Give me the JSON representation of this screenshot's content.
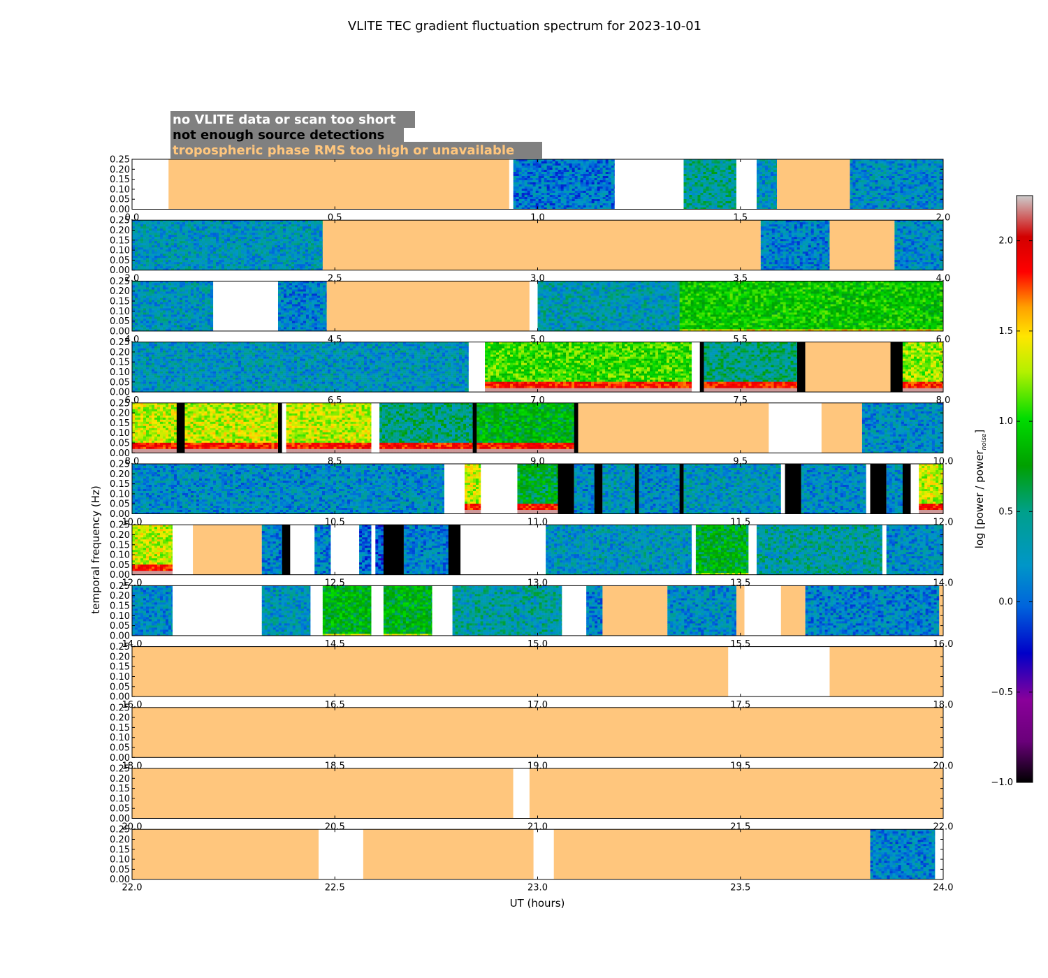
{
  "chart_data": {
    "type": "heatmap",
    "title": "VLITE TEC gradient fluctuation spectrum for 2023-10-01",
    "xlabel": "UT (hours)",
    "ylabel": "temporal frequency (Hz)",
    "colorbar_label": "log [power / power",
    "colorbar_label_sub": "noise",
    "colorbar_label_end": "]",
    "colorbar_range": [
      -1.0,
      2.25
    ],
    "colorbar_ticks": [
      "2.0",
      "1.5",
      "1.0",
      "0.5",
      "0.0",
      "−0.5",
      "−1.0"
    ],
    "colorbar_tick_values": [
      2.0,
      1.5,
      1.0,
      0.5,
      0.0,
      -0.5,
      -1.0
    ],
    "y_ticks": [
      "0.25",
      "0.20",
      "0.15",
      "0.10",
      "0.05",
      "0.00"
    ],
    "y_tick_values": [
      0.25,
      0.2,
      0.15,
      0.1,
      0.05,
      0.0
    ],
    "ylim": [
      0,
      0.25
    ],
    "legend": [
      {
        "label": "no VLITE data or scan too short",
        "text_color": "#ffffff",
        "meaning": "white"
      },
      {
        "label": "not enough source detections",
        "text_color": "#000000",
        "meaning": "black"
      },
      {
        "label": "tropospheric phase RMS too high or unavailable",
        "text_color": "#ffc67d",
        "meaning": "orange"
      }
    ],
    "legend_placement": "top-left",
    "colors": {
      "no_data": "#ffffff",
      "few_detections": "#000000",
      "tropo_flag": "#ffc67d",
      "legend_box": "#808080"
    },
    "panels": [
      {
        "xlim": [
          0,
          2
        ],
        "x_ticks": [
          "0.0",
          "0.5",
          "1.0",
          "1.5",
          "2.0"
        ],
        "segments": [
          {
            "start": 0.0,
            "end": 0.09,
            "kind": "nodata"
          },
          {
            "start": 0.09,
            "end": 0.93,
            "kind": "tropo"
          },
          {
            "start": 0.93,
            "end": 0.94,
            "kind": "nodata"
          },
          {
            "start": 0.94,
            "end": 1.19,
            "kind": "spectrum",
            "level": -0.05
          },
          {
            "start": 1.19,
            "end": 1.36,
            "kind": "nodata"
          },
          {
            "start": 1.36,
            "end": 1.49,
            "kind": "spectrum",
            "level": 0.25
          },
          {
            "start": 1.49,
            "end": 1.54,
            "kind": "nodata"
          },
          {
            "start": 1.54,
            "end": 1.59,
            "kind": "spectrum",
            "level": 0.1
          },
          {
            "start": 1.59,
            "end": 1.77,
            "kind": "tropo"
          },
          {
            "start": 1.77,
            "end": 2.0,
            "kind": "spectrum",
            "level": 0.05
          }
        ]
      },
      {
        "xlim": [
          2,
          4
        ],
        "x_ticks": [
          "2.0",
          "2.5",
          "3.0",
          "3.5",
          "4.0"
        ],
        "segments": [
          {
            "start": 2.0,
            "end": 2.47,
            "kind": "spectrum",
            "level": 0.1
          },
          {
            "start": 2.47,
            "end": 3.55,
            "kind": "tropo"
          },
          {
            "start": 3.55,
            "end": 3.72,
            "kind": "spectrum",
            "level": 0.0
          },
          {
            "start": 3.72,
            "end": 3.88,
            "kind": "tropo"
          },
          {
            "start": 3.88,
            "end": 4.0,
            "kind": "spectrum",
            "level": 0.05
          }
        ]
      },
      {
        "xlim": [
          4,
          6
        ],
        "x_ticks": [
          "4.0",
          "4.5",
          "5.0",
          "5.5",
          "6.0"
        ],
        "segments": [
          {
            "start": 4.0,
            "end": 4.2,
            "kind": "spectrum",
            "level": 0.1
          },
          {
            "start": 4.2,
            "end": 4.36,
            "kind": "nodata"
          },
          {
            "start": 4.36,
            "end": 4.48,
            "kind": "spectrum",
            "level": 0.0
          },
          {
            "start": 4.48,
            "end": 4.98,
            "kind": "tropo"
          },
          {
            "start": 4.98,
            "end": 5.0,
            "kind": "nodata"
          },
          {
            "start": 5.0,
            "end": 5.35,
            "kind": "spectrum",
            "level": 0.15
          },
          {
            "start": 5.35,
            "end": 6.0,
            "kind": "spectrum",
            "level": 0.75
          }
        ]
      },
      {
        "xlim": [
          6,
          8
        ],
        "x_ticks": [
          "6.0",
          "6.5",
          "7.0",
          "7.5",
          "8.0"
        ],
        "segments": [
          {
            "start": 6.0,
            "end": 6.83,
            "kind": "spectrum",
            "level": 0.1
          },
          {
            "start": 6.83,
            "end": 6.87,
            "kind": "nodata"
          },
          {
            "start": 6.87,
            "end": 7.38,
            "kind": "spectrum",
            "level": 0.9,
            "low_band": true
          },
          {
            "start": 7.38,
            "end": 7.4,
            "kind": "nodata"
          },
          {
            "start": 7.4,
            "end": 7.41,
            "kind": "black"
          },
          {
            "start": 7.41,
            "end": 7.64,
            "kind": "spectrum",
            "level": 0.3,
            "low_band": true
          },
          {
            "start": 7.64,
            "end": 7.66,
            "kind": "black"
          },
          {
            "start": 7.66,
            "end": 7.87,
            "kind": "tropo"
          },
          {
            "start": 7.87,
            "end": 7.9,
            "kind": "black"
          },
          {
            "start": 7.9,
            "end": 8.0,
            "kind": "spectrum",
            "level": 1.1,
            "low_band": true
          }
        ]
      },
      {
        "xlim": [
          8,
          10
        ],
        "x_ticks": [
          "8.0",
          "8.5",
          "9.0",
          "9.5",
          "10.0"
        ],
        "segments": [
          {
            "start": 8.0,
            "end": 8.11,
            "kind": "spectrum",
            "level": 1.2,
            "low_band": true
          },
          {
            "start": 8.11,
            "end": 8.13,
            "kind": "black"
          },
          {
            "start": 8.13,
            "end": 8.36,
            "kind": "spectrum",
            "level": 1.2,
            "low_band": true
          },
          {
            "start": 8.36,
            "end": 8.37,
            "kind": "black"
          },
          {
            "start": 8.37,
            "end": 8.38,
            "kind": "nodata"
          },
          {
            "start": 8.38,
            "end": 8.59,
            "kind": "spectrum",
            "level": 1.2,
            "low_band": true
          },
          {
            "start": 8.59,
            "end": 8.61,
            "kind": "nodata"
          },
          {
            "start": 8.61,
            "end": 8.84,
            "kind": "spectrum",
            "level": 0.3,
            "low_band": true
          },
          {
            "start": 8.84,
            "end": 8.85,
            "kind": "black"
          },
          {
            "start": 8.85,
            "end": 9.09,
            "kind": "spectrum",
            "level": 0.6,
            "low_band": true
          },
          {
            "start": 9.09,
            "end": 9.1,
            "kind": "black"
          },
          {
            "start": 9.1,
            "end": 9.57,
            "kind": "tropo"
          },
          {
            "start": 9.57,
            "end": 9.7,
            "kind": "nodata"
          },
          {
            "start": 9.7,
            "end": 9.8,
            "kind": "tropo"
          },
          {
            "start": 9.8,
            "end": 10.0,
            "kind": "spectrum",
            "level": 0.05
          }
        ]
      },
      {
        "xlim": [
          10,
          12
        ],
        "x_ticks": [
          "10.0",
          "10.5",
          "11.0",
          "11.5",
          "12.0"
        ],
        "segments": [
          {
            "start": 10.0,
            "end": 10.77,
            "kind": "spectrum",
            "level": 0.05
          },
          {
            "start": 10.77,
            "end": 10.82,
            "kind": "nodata"
          },
          {
            "start": 10.82,
            "end": 10.86,
            "kind": "spectrum",
            "level": 1.2,
            "low_band": true
          },
          {
            "start": 10.86,
            "end": 10.95,
            "kind": "nodata"
          },
          {
            "start": 10.95,
            "end": 11.05,
            "kind": "spectrum",
            "level": 0.5,
            "low_band": true
          },
          {
            "start": 11.05,
            "end": 11.09,
            "kind": "black"
          },
          {
            "start": 11.09,
            "end": 11.14,
            "kind": "spectrum",
            "level": 0.05
          },
          {
            "start": 11.14,
            "end": 11.16,
            "kind": "black"
          },
          {
            "start": 11.16,
            "end": 11.24,
            "kind": "spectrum",
            "level": 0.1
          },
          {
            "start": 11.24,
            "end": 11.25,
            "kind": "black"
          },
          {
            "start": 11.25,
            "end": 11.35,
            "kind": "spectrum",
            "level": 0.05
          },
          {
            "start": 11.35,
            "end": 11.36,
            "kind": "black"
          },
          {
            "start": 11.36,
            "end": 11.6,
            "kind": "spectrum",
            "level": 0.1
          },
          {
            "start": 11.6,
            "end": 11.61,
            "kind": "nodata"
          },
          {
            "start": 11.61,
            "end": 11.65,
            "kind": "black"
          },
          {
            "start": 11.65,
            "end": 11.81,
            "kind": "spectrum",
            "level": 0.05
          },
          {
            "start": 11.81,
            "end": 11.82,
            "kind": "nodata"
          },
          {
            "start": 11.82,
            "end": 11.86,
            "kind": "black"
          },
          {
            "start": 11.86,
            "end": 11.9,
            "kind": "spectrum",
            "level": 0.05
          },
          {
            "start": 11.9,
            "end": 11.92,
            "kind": "black"
          },
          {
            "start": 11.92,
            "end": 11.94,
            "kind": "nodata"
          },
          {
            "start": 11.94,
            "end": 12.0,
            "kind": "spectrum",
            "level": 1.2,
            "low_band": true
          }
        ]
      },
      {
        "xlim": [
          12,
          14
        ],
        "x_ticks": [
          "12.0",
          "12.5",
          "13.0",
          "13.5",
          "14.0"
        ],
        "segments": [
          {
            "start": 12.0,
            "end": 12.1,
            "kind": "spectrum",
            "level": 1.2,
            "low_band": true
          },
          {
            "start": 12.1,
            "end": 12.15,
            "kind": "nodata"
          },
          {
            "start": 12.15,
            "end": 12.32,
            "kind": "tropo"
          },
          {
            "start": 12.32,
            "end": 12.37,
            "kind": "spectrum",
            "level": 0.0
          },
          {
            "start": 12.37,
            "end": 12.39,
            "kind": "black"
          },
          {
            "start": 12.39,
            "end": 12.45,
            "kind": "nodata"
          },
          {
            "start": 12.45,
            "end": 12.49,
            "kind": "spectrum",
            "level": 0.0
          },
          {
            "start": 12.49,
            "end": 12.56,
            "kind": "nodata"
          },
          {
            "start": 12.56,
            "end": 12.59,
            "kind": "spectrum",
            "level": -0.1
          },
          {
            "start": 12.59,
            "end": 12.6,
            "kind": "nodata"
          },
          {
            "start": 12.6,
            "end": 12.62,
            "kind": "spectrum",
            "level": -0.2
          },
          {
            "start": 12.62,
            "end": 12.67,
            "kind": "black"
          },
          {
            "start": 12.67,
            "end": 12.78,
            "kind": "spectrum",
            "level": 0.0
          },
          {
            "start": 12.78,
            "end": 12.81,
            "kind": "black"
          },
          {
            "start": 12.81,
            "end": 13.02,
            "kind": "nodata"
          },
          {
            "start": 13.02,
            "end": 13.38,
            "kind": "spectrum",
            "level": 0.1
          },
          {
            "start": 13.38,
            "end": 13.39,
            "kind": "nodata"
          },
          {
            "start": 13.39,
            "end": 13.52,
            "kind": "spectrum",
            "level": 0.55
          },
          {
            "start": 13.52,
            "end": 13.54,
            "kind": "nodata"
          },
          {
            "start": 13.54,
            "end": 13.85,
            "kind": "spectrum",
            "level": 0.2
          },
          {
            "start": 13.85,
            "end": 13.86,
            "kind": "nodata"
          },
          {
            "start": 13.86,
            "end": 14.0,
            "kind": "spectrum",
            "level": 0.05
          }
        ]
      },
      {
        "xlim": [
          14,
          16
        ],
        "x_ticks": [
          "14.0",
          "14.5",
          "15.0",
          "15.5",
          "16.0"
        ],
        "segments": [
          {
            "start": 14.0,
            "end": 14.1,
            "kind": "spectrum",
            "level": 0.05
          },
          {
            "start": 14.1,
            "end": 14.32,
            "kind": "nodata"
          },
          {
            "start": 14.32,
            "end": 14.44,
            "kind": "spectrum",
            "level": 0.1
          },
          {
            "start": 14.44,
            "end": 14.47,
            "kind": "nodata"
          },
          {
            "start": 14.47,
            "end": 14.59,
            "kind": "spectrum",
            "level": 0.6
          },
          {
            "start": 14.59,
            "end": 14.62,
            "kind": "nodata"
          },
          {
            "start": 14.62,
            "end": 14.74,
            "kind": "spectrum",
            "level": 0.6
          },
          {
            "start": 14.74,
            "end": 14.79,
            "kind": "nodata"
          },
          {
            "start": 14.79,
            "end": 15.06,
            "kind": "spectrum",
            "level": 0.2
          },
          {
            "start": 15.06,
            "end": 15.12,
            "kind": "nodata"
          },
          {
            "start": 15.12,
            "end": 15.16,
            "kind": "spectrum",
            "level": 0.0
          },
          {
            "start": 15.16,
            "end": 15.32,
            "kind": "tropo"
          },
          {
            "start": 15.32,
            "end": 15.49,
            "kind": "spectrum",
            "level": 0.05
          },
          {
            "start": 15.49,
            "end": 15.51,
            "kind": "tropo"
          },
          {
            "start": 15.51,
            "end": 15.6,
            "kind": "nodata"
          },
          {
            "start": 15.6,
            "end": 15.66,
            "kind": "tropo"
          },
          {
            "start": 15.66,
            "end": 15.99,
            "kind": "spectrum",
            "level": 0.0
          },
          {
            "start": 15.99,
            "end": 16.0,
            "kind": "tropo"
          }
        ]
      },
      {
        "xlim": [
          16,
          18
        ],
        "x_ticks": [
          "16.0",
          "16.5",
          "17.0",
          "17.5",
          "18.0"
        ],
        "segments": [
          {
            "start": 16.0,
            "end": 17.47,
            "kind": "tropo"
          },
          {
            "start": 17.47,
            "end": 17.72,
            "kind": "nodata"
          },
          {
            "start": 17.72,
            "end": 18.0,
            "kind": "tropo"
          }
        ]
      },
      {
        "xlim": [
          18,
          20
        ],
        "x_ticks": [
          "18.0",
          "18.5",
          "19.0",
          "19.5",
          "20.0"
        ],
        "segments": [
          {
            "start": 18.0,
            "end": 20.0,
            "kind": "tropo"
          }
        ]
      },
      {
        "xlim": [
          20,
          22
        ],
        "x_ticks": [
          "20.0",
          "20.5",
          "21.0",
          "21.5",
          "22.0"
        ],
        "segments": [
          {
            "start": 20.0,
            "end": 20.94,
            "kind": "tropo"
          },
          {
            "start": 20.94,
            "end": 20.98,
            "kind": "nodata"
          },
          {
            "start": 20.98,
            "end": 22.0,
            "kind": "tropo"
          }
        ]
      },
      {
        "xlim": [
          22,
          24
        ],
        "x_ticks": [
          "22.0",
          "22.5",
          "23.0",
          "23.5",
          "24.0"
        ],
        "segments": [
          {
            "start": 22.0,
            "end": 22.46,
            "kind": "tropo"
          },
          {
            "start": 22.46,
            "end": 22.57,
            "kind": "nodata"
          },
          {
            "start": 22.57,
            "end": 22.99,
            "kind": "tropo"
          },
          {
            "start": 22.99,
            "end": 23.04,
            "kind": "nodata"
          },
          {
            "start": 23.04,
            "end": 23.82,
            "kind": "tropo"
          },
          {
            "start": 23.82,
            "end": 23.98,
            "kind": "spectrum",
            "level": 0.0
          },
          {
            "start": 23.98,
            "end": 24.0,
            "kind": "nodata"
          }
        ]
      }
    ]
  }
}
